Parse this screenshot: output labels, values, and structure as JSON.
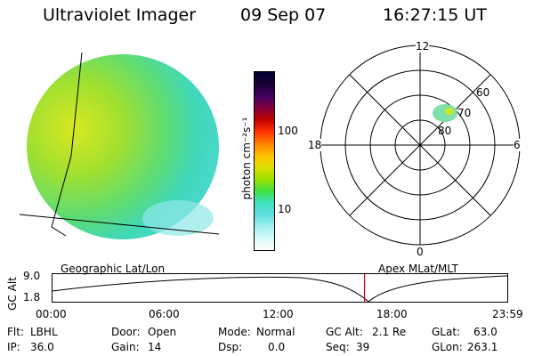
{
  "header": {
    "title": "Ultraviolet Imager",
    "date": "09 Sep 07",
    "time": "16:27:15 UT"
  },
  "colorbar": {
    "label": "photon cm⁻²s⁻¹",
    "ticks": [
      "100",
      "10"
    ],
    "colors": [
      "#000033",
      "#1a0033",
      "#400060",
      "#800040",
      "#c00000",
      "#ff3000",
      "#ff8000",
      "#ffc000",
      "#e0e000",
      "#a0e000",
      "#40e040",
      "#40e0c0",
      "#60e0e0",
      "#a0f0f0",
      "#d8f8f8",
      "#ffffff"
    ]
  },
  "polar": {
    "labels": {
      "top": "12",
      "left": "18",
      "right": "6",
      "bottom": "0"
    },
    "rings": [
      "60",
      "70",
      "80"
    ]
  },
  "timeline": {
    "ylabel": "GC Alt",
    "yticks": [
      "9.0",
      "1.8"
    ],
    "left_caption": "Geographic Lat/Lon",
    "right_caption": "Apex MLat/MLT",
    "xticks": [
      "00:00",
      "06:00",
      "12:00",
      "18:00",
      "23:59"
    ],
    "marker_time": "16:27:15"
  },
  "info": {
    "flt_label": "Flt:",
    "flt_value": "LBHL",
    "ip_label": "IP:",
    "ip_value": "36.0",
    "door_label": "Door:",
    "door_value": "Open",
    "gain_label": "Gain:",
    "gain_value": "14",
    "mode_label": "Mode:",
    "mode_value": "Normal",
    "dsp_label": "Dsp:",
    "dsp_value": "0.0",
    "gcalt_label": "GC Alt:",
    "gcalt_value": "2.1 Re",
    "seq_label": "Seq:",
    "seq_value": "39",
    "glat_label": "GLat:",
    "glat_value": "63.0",
    "glon_label": "GLon:",
    "glon_value": "263.1"
  }
}
